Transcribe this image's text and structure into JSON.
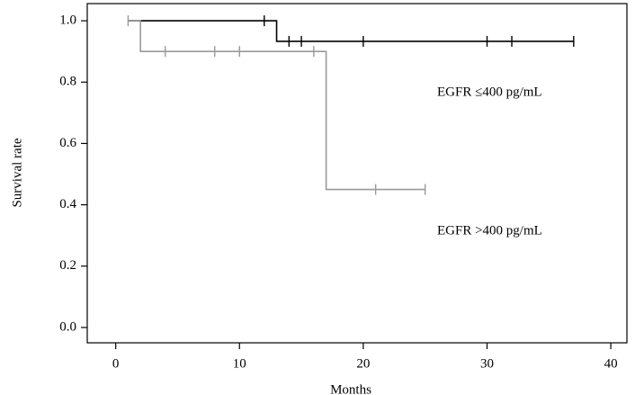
{
  "chart_data": {
    "type": "step",
    "xlabel": "Months",
    "ylabel": "Survival rate",
    "xlim": [
      -2.3,
      41.3
    ],
    "ylim": [
      -0.05,
      1.056
    ],
    "xticks": [
      0,
      10,
      20,
      30,
      40
    ],
    "yticks": [
      {
        "value": 0,
        "label": "0.0"
      },
      {
        "value": 0.2,
        "label": "0.2"
      },
      {
        "value": 0.4,
        "label": "0.4"
      },
      {
        "value": 0.6,
        "label": "0.6"
      },
      {
        "value": 0.8,
        "label": "0.8"
      },
      {
        "value": 1,
        "label": "1.0"
      }
    ],
    "series": [
      {
        "name": "EGFR ≤400 pg/mL",
        "color": "#000000",
        "x": [
          1,
          13,
          13,
          37
        ],
        "values": [
          1,
          1,
          0.933,
          0.933
        ],
        "censored": {
          "x": [
            12,
            14,
            15,
            20,
            30,
            32,
            37
          ],
          "values": [
            1,
            0.933,
            0.933,
            0.933,
            0.933,
            0.933,
            0.933
          ]
        }
      },
      {
        "name": "EGFR >400 pg/mL",
        "color": "#999999",
        "x": [
          1,
          2,
          2,
          17,
          17,
          25
        ],
        "values": [
          1,
          1,
          0.9,
          0.9,
          0.45,
          0.45
        ],
        "censored": {
          "x": [
            1,
            4,
            8,
            10,
            16,
            21,
            25
          ],
          "values": [
            1,
            0.9,
            0.9,
            0.9,
            0.9,
            0.45,
            0.45
          ]
        }
      }
    ]
  }
}
